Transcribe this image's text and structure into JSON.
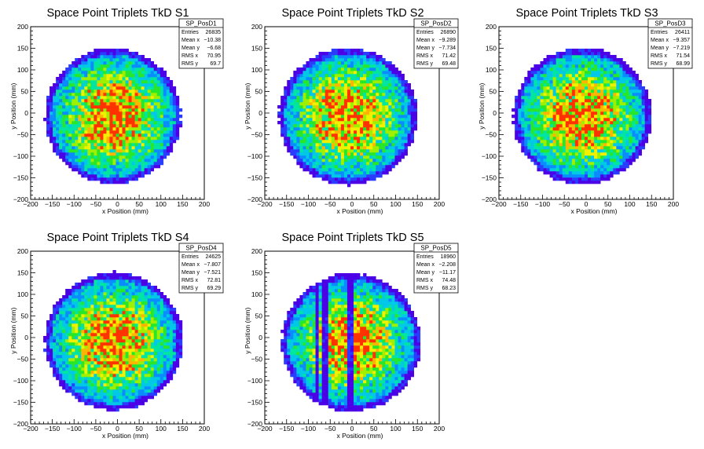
{
  "chart_data": [
    {
      "type": "heatmap",
      "title": "Space Point Triplets TkD S1",
      "xlabel": "x Position (mm)",
      "ylabel": "y Position (mm)",
      "xlim": [
        -200,
        200
      ],
      "ylim": [
        -200,
        200
      ],
      "xticks": [
        "−200",
        "−150",
        "−100",
        "−50",
        "0",
        "50",
        "100",
        "150",
        "200"
      ],
      "yticks": [
        "−200",
        "−150",
        "−100",
        "−50",
        "0",
        "50",
        "100",
        "150",
        "200"
      ],
      "stats": {
        "name": "SP_PosD1",
        "rows": [
          {
            "label": "Entries",
            "value": "26835"
          },
          {
            "label": "Mean x",
            "value": "−10.38"
          },
          {
            "label": "Mean y",
            "value": "−6.68"
          },
          {
            "label": "RMS x",
            "value": "70.95"
          },
          {
            "label": "RMS y",
            "value": "69.7"
          }
        ]
      },
      "distribution": {
        "cx": -10,
        "cy": -7,
        "radius": 155,
        "gaps_x": []
      }
    },
    {
      "type": "heatmap",
      "title": "Space Point Triplets TkD S2",
      "xlabel": "x Position (mm)",
      "ylabel": "y Position (mm)",
      "xlim": [
        -200,
        200
      ],
      "ylim": [
        -200,
        200
      ],
      "xticks": [
        "−200",
        "−150",
        "−100",
        "−50",
        "0",
        "50",
        "100",
        "150",
        "200"
      ],
      "yticks": [
        "−200",
        "−150",
        "−100",
        "−50",
        "0",
        "50",
        "100",
        "150",
        "200"
      ],
      "stats": {
        "name": "SP_PosD2",
        "rows": [
          {
            "label": "Entries",
            "value": "26890"
          },
          {
            "label": "Mean x",
            "value": "−9.289"
          },
          {
            "label": "Mean y",
            "value": "−7.734"
          },
          {
            "label": "RMS x",
            "value": "71.42"
          },
          {
            "label": "RMS y",
            "value": "69.48"
          }
        ]
      },
      "distribution": {
        "cx": -9,
        "cy": -8,
        "radius": 157,
        "gaps_x": []
      }
    },
    {
      "type": "heatmap",
      "title": "Space Point Triplets TkD S3",
      "xlabel": "x Position (mm)",
      "ylabel": "y Position (mm)",
      "xlim": [
        -200,
        200
      ],
      "ylim": [
        -200,
        200
      ],
      "xticks": [
        "−200",
        "−150",
        "−100",
        "−50",
        "0",
        "50",
        "100",
        "150",
        "200"
      ],
      "yticks": [
        "−200",
        "−150",
        "−100",
        "−50",
        "0",
        "50",
        "100",
        "150",
        "200"
      ],
      "stats": {
        "name": "SP_PosD3",
        "rows": [
          {
            "label": "Entries",
            "value": "26411"
          },
          {
            "label": "Mean x",
            "value": "−9.357"
          },
          {
            "label": "Mean y",
            "value": "−7.219"
          },
          {
            "label": "RMS x",
            "value": "71.54"
          },
          {
            "label": "RMS y",
            "value": "68.99"
          }
        ]
      },
      "distribution": {
        "cx": -9,
        "cy": -7,
        "radius": 157,
        "gaps_x": []
      }
    },
    {
      "type": "heatmap",
      "title": "Space Point Triplets TkD S4",
      "xlabel": "x Position (mm)",
      "ylabel": "y Position (mm)",
      "xlim": [
        -200,
        200
      ],
      "ylim": [
        -200,
        200
      ],
      "xticks": [
        "−200",
        "−150",
        "−100",
        "−50",
        "0",
        "50",
        "100",
        "150",
        "200"
      ],
      "yticks": [
        "−200",
        "−150",
        "−100",
        "−50",
        "0",
        "50",
        "100",
        "150",
        "200"
      ],
      "stats": {
        "name": "SP_PosD4",
        "rows": [
          {
            "label": "Entries",
            "value": "24625"
          },
          {
            "label": "Mean x",
            "value": "−7.807"
          },
          {
            "label": "Mean y",
            "value": "−7.521"
          },
          {
            "label": "RMS x",
            "value": "72.81"
          },
          {
            "label": "RMS y",
            "value": "69.29"
          }
        ]
      },
      "distribution": {
        "cx": -8,
        "cy": -8,
        "radius": 158,
        "gaps_x": []
      }
    },
    {
      "type": "heatmap",
      "title": "Space Point Triplets TkD S5",
      "xlabel": "x Position (mm)",
      "ylabel": "y Position (mm)",
      "xlim": [
        -200,
        200
      ],
      "ylim": [
        -200,
        200
      ],
      "xticks": [
        "−200",
        "−150",
        "−100",
        "−50",
        "0",
        "50",
        "100",
        "150",
        "200"
      ],
      "yticks": [
        "−200",
        "−150",
        "−100",
        "−50",
        "0",
        "50",
        "100",
        "150",
        "200"
      ],
      "stats": {
        "name": "SP_PosD5",
        "rows": [
          {
            "label": "Entries",
            "value": "18960"
          },
          {
            "label": "Mean x",
            "value": "−2.208"
          },
          {
            "label": "Mean y",
            "value": "−11.17"
          },
          {
            "label": "RMS x",
            "value": "74.48"
          },
          {
            "label": "RMS y",
            "value": "68.23"
          }
        ]
      },
      "distribution": {
        "cx": -2,
        "cy": -11,
        "radius": 158,
        "gaps_x": [
          -80,
          -60,
          -5
        ]
      }
    }
  ],
  "palette": [
    "#4b00e6",
    "#2a3cff",
    "#0a8cff",
    "#00c8e6",
    "#00e6a0",
    "#28e628",
    "#9ef000",
    "#f0f000",
    "#ffb400",
    "#ff3200"
  ]
}
